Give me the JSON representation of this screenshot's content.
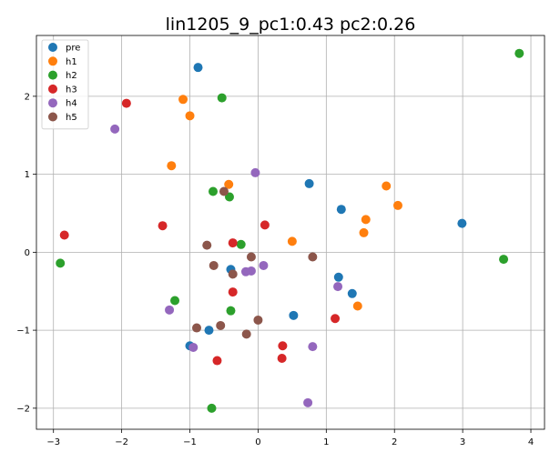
{
  "chart_data": {
    "type": "scatter",
    "title": "lin1205_9_pc1:0.43 pc2:0.26",
    "xlabel": "",
    "ylabel": "",
    "xlim": [
      -3.25,
      4.2
    ],
    "ylim": [
      -2.27,
      2.78
    ],
    "x_ticks": [
      -3,
      -2,
      -1,
      0,
      1,
      2,
      3,
      4
    ],
    "y_ticks": [
      -2,
      -1,
      0,
      1,
      2
    ],
    "x_tick_labels": [
      "−3",
      "−2",
      "−1",
      "0",
      "1",
      "2",
      "3",
      "4"
    ],
    "y_tick_labels": [
      "−2",
      "−1",
      "0",
      "1",
      "2"
    ],
    "grid": true,
    "legend_position": "top-left",
    "series": [
      {
        "name": "pre",
        "color": "#1f77b4",
        "points": [
          [
            -0.88,
            2.37
          ],
          [
            0.75,
            0.88
          ],
          [
            1.22,
            0.55
          ],
          [
            2.99,
            0.37
          ],
          [
            -0.4,
            -0.22
          ],
          [
            1.18,
            -0.32
          ],
          [
            1.38,
            -0.53
          ],
          [
            0.52,
            -0.81
          ],
          [
            -1.0,
            -1.2
          ],
          [
            -0.72,
            -1.0
          ]
        ]
      },
      {
        "name": "h1",
        "color": "#ff7f0e",
        "points": [
          [
            -1.1,
            1.96
          ],
          [
            -1.0,
            1.75
          ],
          [
            -1.27,
            1.11
          ],
          [
            -0.43,
            0.87
          ],
          [
            1.88,
            0.85
          ],
          [
            2.05,
            0.6
          ],
          [
            1.58,
            0.42
          ],
          [
            1.55,
            0.25
          ],
          [
            0.5,
            0.14
          ],
          [
            1.46,
            -0.69
          ]
        ]
      },
      {
        "name": "h2",
        "color": "#2ca02c",
        "points": [
          [
            3.83,
            2.55
          ],
          [
            -0.53,
            1.98
          ],
          [
            -0.66,
            0.78
          ],
          [
            -0.42,
            0.71
          ],
          [
            -0.25,
            0.1
          ],
          [
            -2.9,
            -0.14
          ],
          [
            3.6,
            -0.09
          ],
          [
            -1.22,
            -0.62
          ],
          [
            -0.4,
            -0.75
          ],
          [
            -0.68,
            -2.0
          ]
        ]
      },
      {
        "name": "h3",
        "color": "#d62728",
        "points": [
          [
            -1.93,
            1.91
          ],
          [
            -1.4,
            0.34
          ],
          [
            -2.84,
            0.22
          ],
          [
            0.1,
            0.35
          ],
          [
            -0.37,
            0.12
          ],
          [
            -0.37,
            -0.51
          ],
          [
            1.13,
            -0.85
          ],
          [
            0.36,
            -1.2
          ],
          [
            0.35,
            -1.36
          ],
          [
            -0.6,
            -1.39
          ]
        ]
      },
      {
        "name": "h4",
        "color": "#9467bd",
        "points": [
          [
            -2.1,
            1.58
          ],
          [
            -0.04,
            1.02
          ],
          [
            0.08,
            -0.17
          ],
          [
            -0.1,
            -0.24
          ],
          [
            -0.18,
            -0.25
          ],
          [
            1.17,
            -0.44
          ],
          [
            -1.3,
            -0.74
          ],
          [
            -0.95,
            -1.22
          ],
          [
            0.8,
            -1.21
          ],
          [
            0.73,
            -1.93
          ]
        ]
      },
      {
        "name": "h5",
        "color": "#8c564b",
        "points": [
          [
            -0.5,
            0.78
          ],
          [
            -0.75,
            0.09
          ],
          [
            -0.1,
            -0.06
          ],
          [
            0.8,
            -0.06
          ],
          [
            -0.65,
            -0.17
          ],
          [
            -0.37,
            -0.28
          ],
          [
            0.0,
            -0.87
          ],
          [
            -0.9,
            -0.97
          ],
          [
            -0.55,
            -0.94
          ],
          [
            -0.17,
            -1.05
          ]
        ]
      }
    ]
  }
}
